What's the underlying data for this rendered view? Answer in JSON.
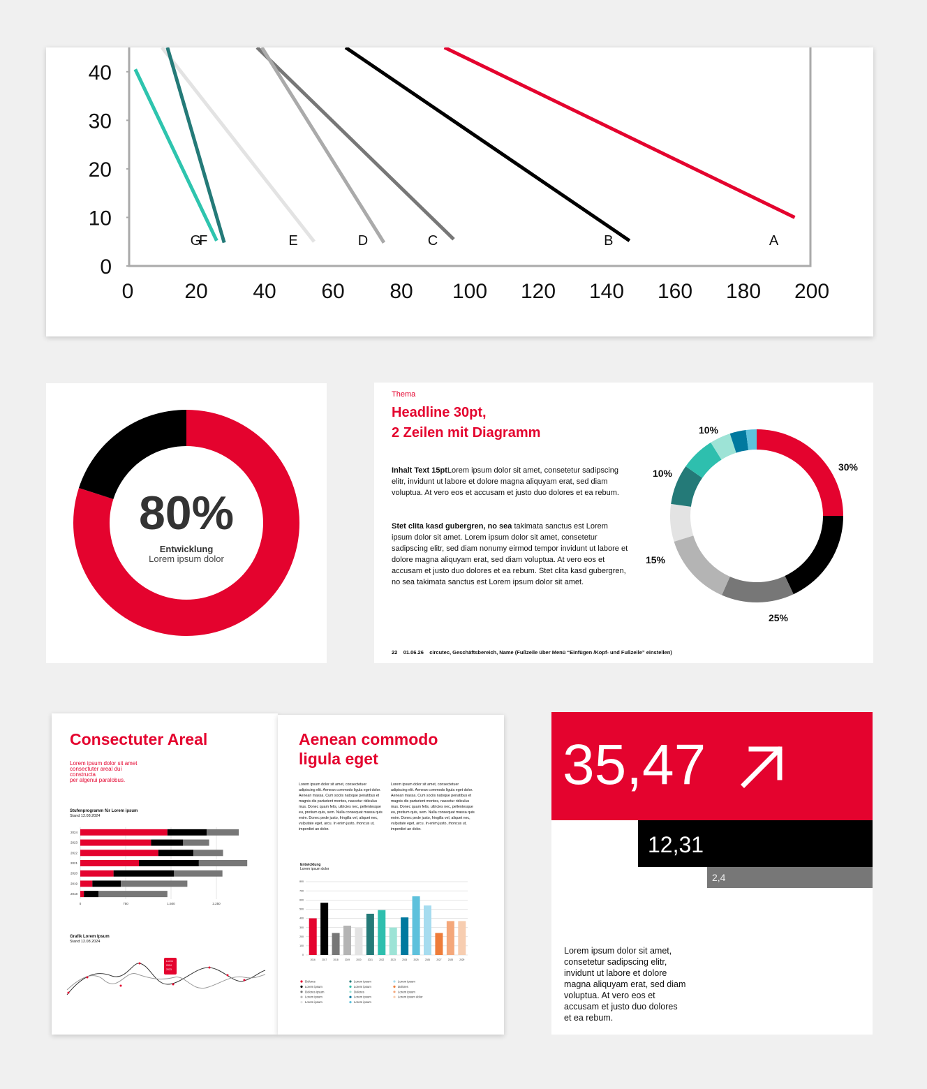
{
  "chart_data": [
    {
      "type": "line",
      "xlim": [
        0,
        200
      ],
      "ylim": [
        0,
        45
      ],
      "xticks": [
        0,
        20,
        40,
        60,
        80,
        100,
        120,
        140,
        160,
        180,
        200
      ],
      "yticks": [
        0,
        10,
        20,
        30,
        40
      ],
      "series": [
        {
          "name": "A",
          "color": "#e4032e",
          "x": [
            92.6,
            195
          ],
          "values": [
            45,
            10
          ]
        },
        {
          "name": "B",
          "color": "#000000",
          "x": [
            63.7,
            146.7
          ],
          "values": [
            45,
            5.2
          ]
        },
        {
          "name": "C",
          "color": "#777777",
          "x": [
            37.8,
            95.3
          ],
          "values": [
            45,
            5.5
          ]
        },
        {
          "name": "D",
          "color": "#aaaaaa",
          "x": [
            39.2,
            74.9
          ],
          "values": [
            45,
            4.8
          ]
        },
        {
          "name": "E",
          "color": "#e3e3e3",
          "x": [
            10,
            54.5
          ],
          "values": [
            45,
            5
          ]
        },
        {
          "name": "F",
          "color": "#247a78",
          "x": [
            11.6,
            28.2
          ],
          "values": [
            45,
            4.8
          ]
        },
        {
          "name": "G",
          "color": "#2ec4ae",
          "x": [
            2.2,
            26
          ],
          "values": [
            40.5,
            5.2
          ]
        }
      ]
    },
    {
      "type": "pie",
      "donut": true,
      "values": [
        80,
        20
      ],
      "colors": [
        "#e4032e",
        "#000000"
      ],
      "value_labels": [
        "80%",
        null
      ],
      "title": "Entwicklung",
      "subtitle": "Lorem ipsum dolor"
    },
    {
      "type": "pie",
      "donut": true,
      "values": [
        25,
        18,
        13.6,
        13.6,
        7,
        7.5,
        6.4,
        3.9,
        3,
        2
      ],
      "colors": [
        "#e4032e",
        "#000000",
        "#777777",
        "#b4b4b4",
        "#e3e3e3",
        "#247a78",
        "#2ebfae",
        "#9de3d6",
        "#00799f",
        "#5ec1dc"
      ],
      "annotations": [
        "10%",
        "10%",
        "15%",
        "25%",
        "30%"
      ]
    },
    {
      "type": "bar",
      "orientation": "horizontal",
      "stacked": true,
      "title": "Stufenprogramm für Lorem ipsum",
      "subtitle": "Stand 12.08.2024",
      "categories": [
        "2024",
        "2023",
        "2022",
        "2021",
        "2020",
        "2019",
        "2018"
      ],
      "series": [
        {
          "color": "#e4032e",
          "values": [
            1440,
            1170,
            1290,
            970,
            550,
            200,
            60
          ]
        },
        {
          "color": "#000000",
          "values": [
            650,
            530,
            580,
            990,
            1000,
            470,
            240
          ]
        },
        {
          "color": "#777777",
          "values": [
            530,
            430,
            490,
            800,
            800,
            1100,
            1140
          ]
        }
      ],
      "xlim": [
        0,
        2800
      ],
      "xticks": [
        0,
        750,
        {
          "value": 1500,
          "label": "1.500"
        },
        {
          "value": 2250,
          "label": "2.250"
        }
      ],
      "grid": true
    },
    {
      "type": "bar",
      "title": "Entwicklung",
      "subtitle": "Lorem ipsum dolor",
      "categories": [
        "2016",
        "2017",
        "2018",
        "2019",
        "2020",
        "2021",
        "2022",
        "2023",
        "2024",
        "2025",
        "2026",
        "2027",
        "2028",
        "2029"
      ],
      "values": [
        400,
        570,
        240,
        320,
        300,
        450,
        490,
        300,
        410,
        640,
        540,
        240,
        370,
        370
      ],
      "colors": [
        "#e4032e",
        "#000000",
        "#777777",
        "#b4b4b4",
        "#e3e3e3",
        "#247a78",
        "#2ebfae",
        "#9de3d6",
        "#00799f",
        "#5ec1dc",
        "#a6dcef",
        "#ee7d3a",
        "#f4a77a",
        "#f7cdb0"
      ],
      "legend": [
        "Dolores",
        "Lorem ipsum",
        "Dolores ipsum",
        "Lorem ipsum",
        "Lorem ipsum",
        "Lorem ipsum",
        "Lorem ipsum",
        "Dolores",
        "Lorem ipsum",
        "Lorem ipsum",
        "Lorem ipsum",
        "Dolores",
        "Lorem ipsum",
        "Lorem ipsum dolor"
      ],
      "ylim": [
        0,
        800
      ],
      "yticks": [
        0,
        100,
        200,
        300,
        400,
        500,
        600,
        700,
        800
      ],
      "grid": true
    }
  ],
  "slide": {
    "topic": "Thema",
    "headline": [
      "Headline 30pt,",
      "2 Zeilen mit Diagramm"
    ],
    "paragraphs": [
      {
        "lead": "Inhalt Text 15pt",
        "text": "Lorem ipsum dolor sit amet, consetetur sadipscing elitr, invidunt ut labore et dolore magna aliquyam erat, sed diam voluptua. At vero eos et accusam et justo duo dolores et ea rebum."
      },
      {
        "lead": "Stet clita kasd gubergren, no sea",
        "text": "takimata sanctus est Lorem ipsum dolor sit amet. Lorem ipsum dolor sit amet, consetetur sadipscing elitr, sed diam nonumy eirmod tempor invidunt ut labore et dolore magna aliquyam erat, sed diam voluptua. At vero eos et accusam et justo duo dolores et ea rebum. Stet clita kasd gubergren, no sea takimata sanctus est Lorem ipsum dolor sit amet."
      }
    ],
    "footer": {
      "page": "22",
      "date": "01.06.26",
      "text": "circutec, Geschäftsbereich, Name (Fußzeile über Menü “Einfügen /Kopf- und Fußzeile” einstellen)"
    }
  },
  "brochure": {
    "left_title": "Consectuter Areal",
    "left_intro": [
      "Lorem ipsum dolor sit amet",
      "consectuter areal dui",
      "constructa",
      "per algenui paralobus."
    ],
    "line_title": "Grafik Lorem Ipsum",
    "line_subtitle": "Stand 12.08.2024",
    "tooltip": [
      "Lorem",
      "2024",
      "2023"
    ],
    "right_title": [
      "Aenean commodo",
      "ligula eget"
    ],
    "columns": [
      "Lorem ipsum dolor sit amet, consectetuer adipiscing elit. Aenean commodo ligula eget dolor. Aenean massa. Cum sociis natoque penatibus et magnis dis parturient montes, nascetur ridiculus mus. Donec quam felis, ultricies nec, pellentesque eu, pretium quis, sem. Nulla consequat massa quis enim. Donec pede justo, fringilla vel, aliquet nec, vulputate eget, arcu. In enim justo, rhoncus ut, imperdiet an dolor.",
      "Lorem ipsum dolor sit amet, consectetuer adipiscing elit. Aenean commodo ligula eget dolor. Aenean massa. Cum sociis natoque penatibus et magnis dis parturient montes, nascetur ridiculus mus. Donec quam felis, ultricies nec, pellentesque eu, pretium quis, sem. Nulla consequat massa quis enim. Donec pede justo, fringilla vel, aliquet nec, vulputate eget, arcu. In enim justo, rhoncus ut, imperdiet an dolor."
    ]
  },
  "kpi": {
    "main": "35,47",
    "second": "12,31",
    "third": "2,4",
    "text": "Lorem ipsum dolor sit amet, consetetur sadipscing elitr, invidunt ut labore et dolore magna aliquyam erat, sed diam voluptua. At vero eos et accusam et justo duo dolores et ea rebum."
  }
}
